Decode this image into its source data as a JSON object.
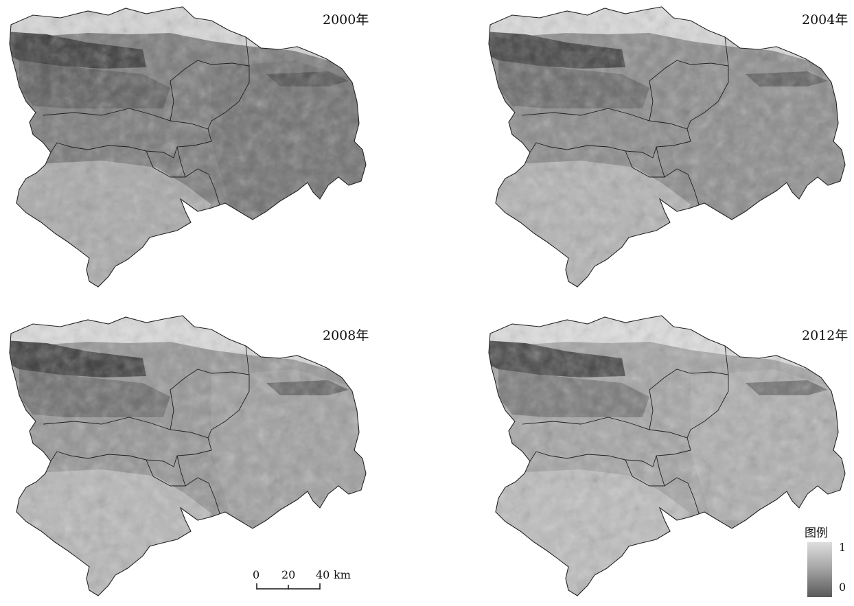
{
  "panels": [
    {
      "year": "2000年",
      "tone": "dark"
    },
    {
      "year": "2004年",
      "tone": "mid"
    },
    {
      "year": "2008年",
      "tone": "mid-light"
    },
    {
      "year": "2012年",
      "tone": "light"
    }
  ],
  "legend": {
    "title": "图例",
    "max": "1",
    "min": "0"
  },
  "scale_bar": {
    "ticks": [
      "0",
      "20",
      "40"
    ],
    "unit": "km"
  }
}
